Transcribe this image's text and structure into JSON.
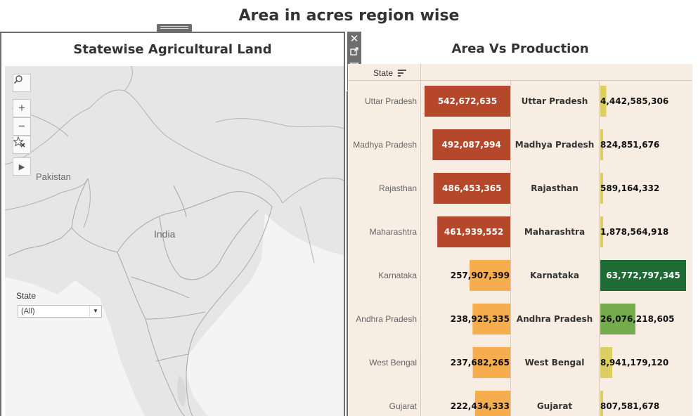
{
  "dashboard": {
    "title": "Area in acres region wise"
  },
  "map": {
    "title": "Statewise Agricultural Land",
    "labels": {
      "pakistan": "Pakistan",
      "india": "India"
    },
    "filter": {
      "label": "State",
      "value": "(All)"
    },
    "controls": [
      "search-icon",
      "zoom-in-icon",
      "zoom-out-icon",
      "reset-view-icon",
      "play-icon"
    ]
  },
  "toolbar": [
    "close-icon",
    "popout-icon",
    "filter-icon",
    "more-icon"
  ],
  "chart_data": {
    "type": "bar",
    "title": "Area Vs Production",
    "row_header": "State",
    "categories": [
      "Uttar Pradesh",
      "Madhya Pradesh",
      "Rajasthan",
      "Maharashtra",
      "Karnataka",
      "Andhra Pradesh",
      "West Bengal",
      "Gujarat"
    ],
    "series": [
      {
        "values": [
          542672635,
          492087994,
          486453365,
          461939552,
          257907399,
          238925335,
          237682265,
          222434333
        ]
      },
      {
        "values": [
          4442585306,
          824851676,
          589164332,
          1878564918,
          63772797345,
          26076218605,
          8941179120,
          807581678
        ]
      }
    ],
    "colors": {
      "area_high": "#b5472a",
      "area_low": "#f5ad4d",
      "prod_low": "#dccf60",
      "prod_mid": "#74ac4e",
      "prod_high": "#1e6b35",
      "background": "#f7ede3"
    }
  }
}
